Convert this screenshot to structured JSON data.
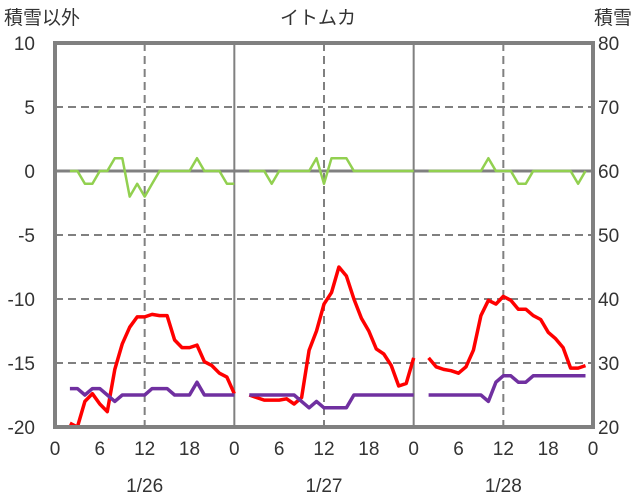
{
  "chart_data": {
    "type": "line",
    "title": "イトムカ",
    "left_axis_title": "積雪以外",
    "right_axis_title": "積雪",
    "ylim_left": [
      -20,
      10
    ],
    "yticks_left": [
      "10",
      "5",
      "0",
      "-5",
      "-10",
      "-15",
      "-20"
    ],
    "ylim_right": [
      20,
      80
    ],
    "yticks_right": [
      "80",
      "70",
      "60",
      "50",
      "40",
      "30",
      "20"
    ],
    "days": [
      "1/26",
      "1/27",
      "1/28"
    ],
    "xticks": [
      "0",
      "6",
      "12",
      "18",
      "0"
    ],
    "series": [
      {
        "name": "red",
        "axis": "left",
        "color": "#ff0000",
        "days": [
          {
            "start_hour": 2,
            "values": [
              -19.7,
              -20,
              -18,
              -17.4,
              -18.2,
              -18.8,
              -15.5,
              -13.5,
              -12.2,
              -11.4,
              -11.4,
              -11.2,
              -11.3,
              -11.3,
              -13.2,
              -13.8,
              -13.8,
              -13.6,
              -14.9,
              -15.2,
              -15.8,
              -16.1,
              -17.4
            ]
          },
          {
            "start_hour": 2,
            "values": [
              -17.5,
              -17.7,
              -17.9,
              -17.9,
              -17.9,
              -17.8,
              -18.2,
              -17.7,
              -14,
              -12.5,
              -10.4,
              -9.5,
              -7.5,
              -8.2,
              -10,
              -11.5,
              -12.5,
              -13.9,
              -14.3,
              -15.2,
              -16.8,
              -16.6,
              -14.6
            ]
          },
          {
            "start_hour": 2,
            "values": [
              -14.6,
              -15.3,
              -15.5,
              -15.6,
              -15.8,
              -15.3,
              -14,
              -11.3,
              -10.1,
              -10.4,
              -9.8,
              -10.1,
              -10.8,
              -10.8,
              -11.3,
              -11.6,
              -12.6,
              -13.1,
              -13.8,
              -15.4,
              -15.4,
              -15.2
            ]
          }
        ]
      },
      {
        "name": "green",
        "axis": "left",
        "color": "#92d050",
        "days": [
          {
            "start_hour": 2,
            "values": [
              0,
              0,
              -1,
              -1,
              0,
              0,
              1,
              1,
              -2,
              -1,
              -2,
              -1,
              0,
              0,
              0,
              0,
              0,
              1,
              0,
              0,
              0,
              -1,
              -1
            ]
          },
          {
            "start_hour": 2,
            "values": [
              0,
              0,
              0,
              -1,
              0,
              0,
              0,
              0,
              0,
              1,
              -1,
              1,
              1,
              1,
              0,
              0,
              0,
              0,
              0,
              0,
              0,
              0,
              0
            ]
          },
          {
            "start_hour": 2,
            "values": [
              0,
              0,
              0,
              0,
              0,
              0,
              0,
              0,
              1,
              0,
              0,
              0,
              -1,
              -1,
              0,
              0,
              0,
              0,
              0,
              0,
              -1,
              0
            ]
          }
        ]
      },
      {
        "name": "purple",
        "axis": "right",
        "color": "#7030a0",
        "days": [
          {
            "start_hour": 2,
            "values": [
              26,
              26,
              25,
              26,
              26,
              25,
              24,
              25,
              25,
              25,
              25,
              26,
              26,
              26,
              25,
              25,
              25,
              27,
              25,
              25,
              25,
              25,
              25
            ]
          },
          {
            "start_hour": 2,
            "values": [
              25,
              25,
              25,
              25,
              25,
              25,
              25,
              24,
              23,
              24,
              23,
              23,
              23,
              23,
              25,
              25,
              25,
              25,
              25,
              25,
              25,
              25,
              25
            ]
          },
          {
            "start_hour": 2,
            "values": [
              25,
              25,
              25,
              25,
              25,
              25,
              25,
              25,
              24,
              27,
              28,
              28,
              27,
              27,
              28,
              28,
              28,
              28,
              28,
              28,
              28,
              28
            ]
          }
        ]
      }
    ]
  }
}
